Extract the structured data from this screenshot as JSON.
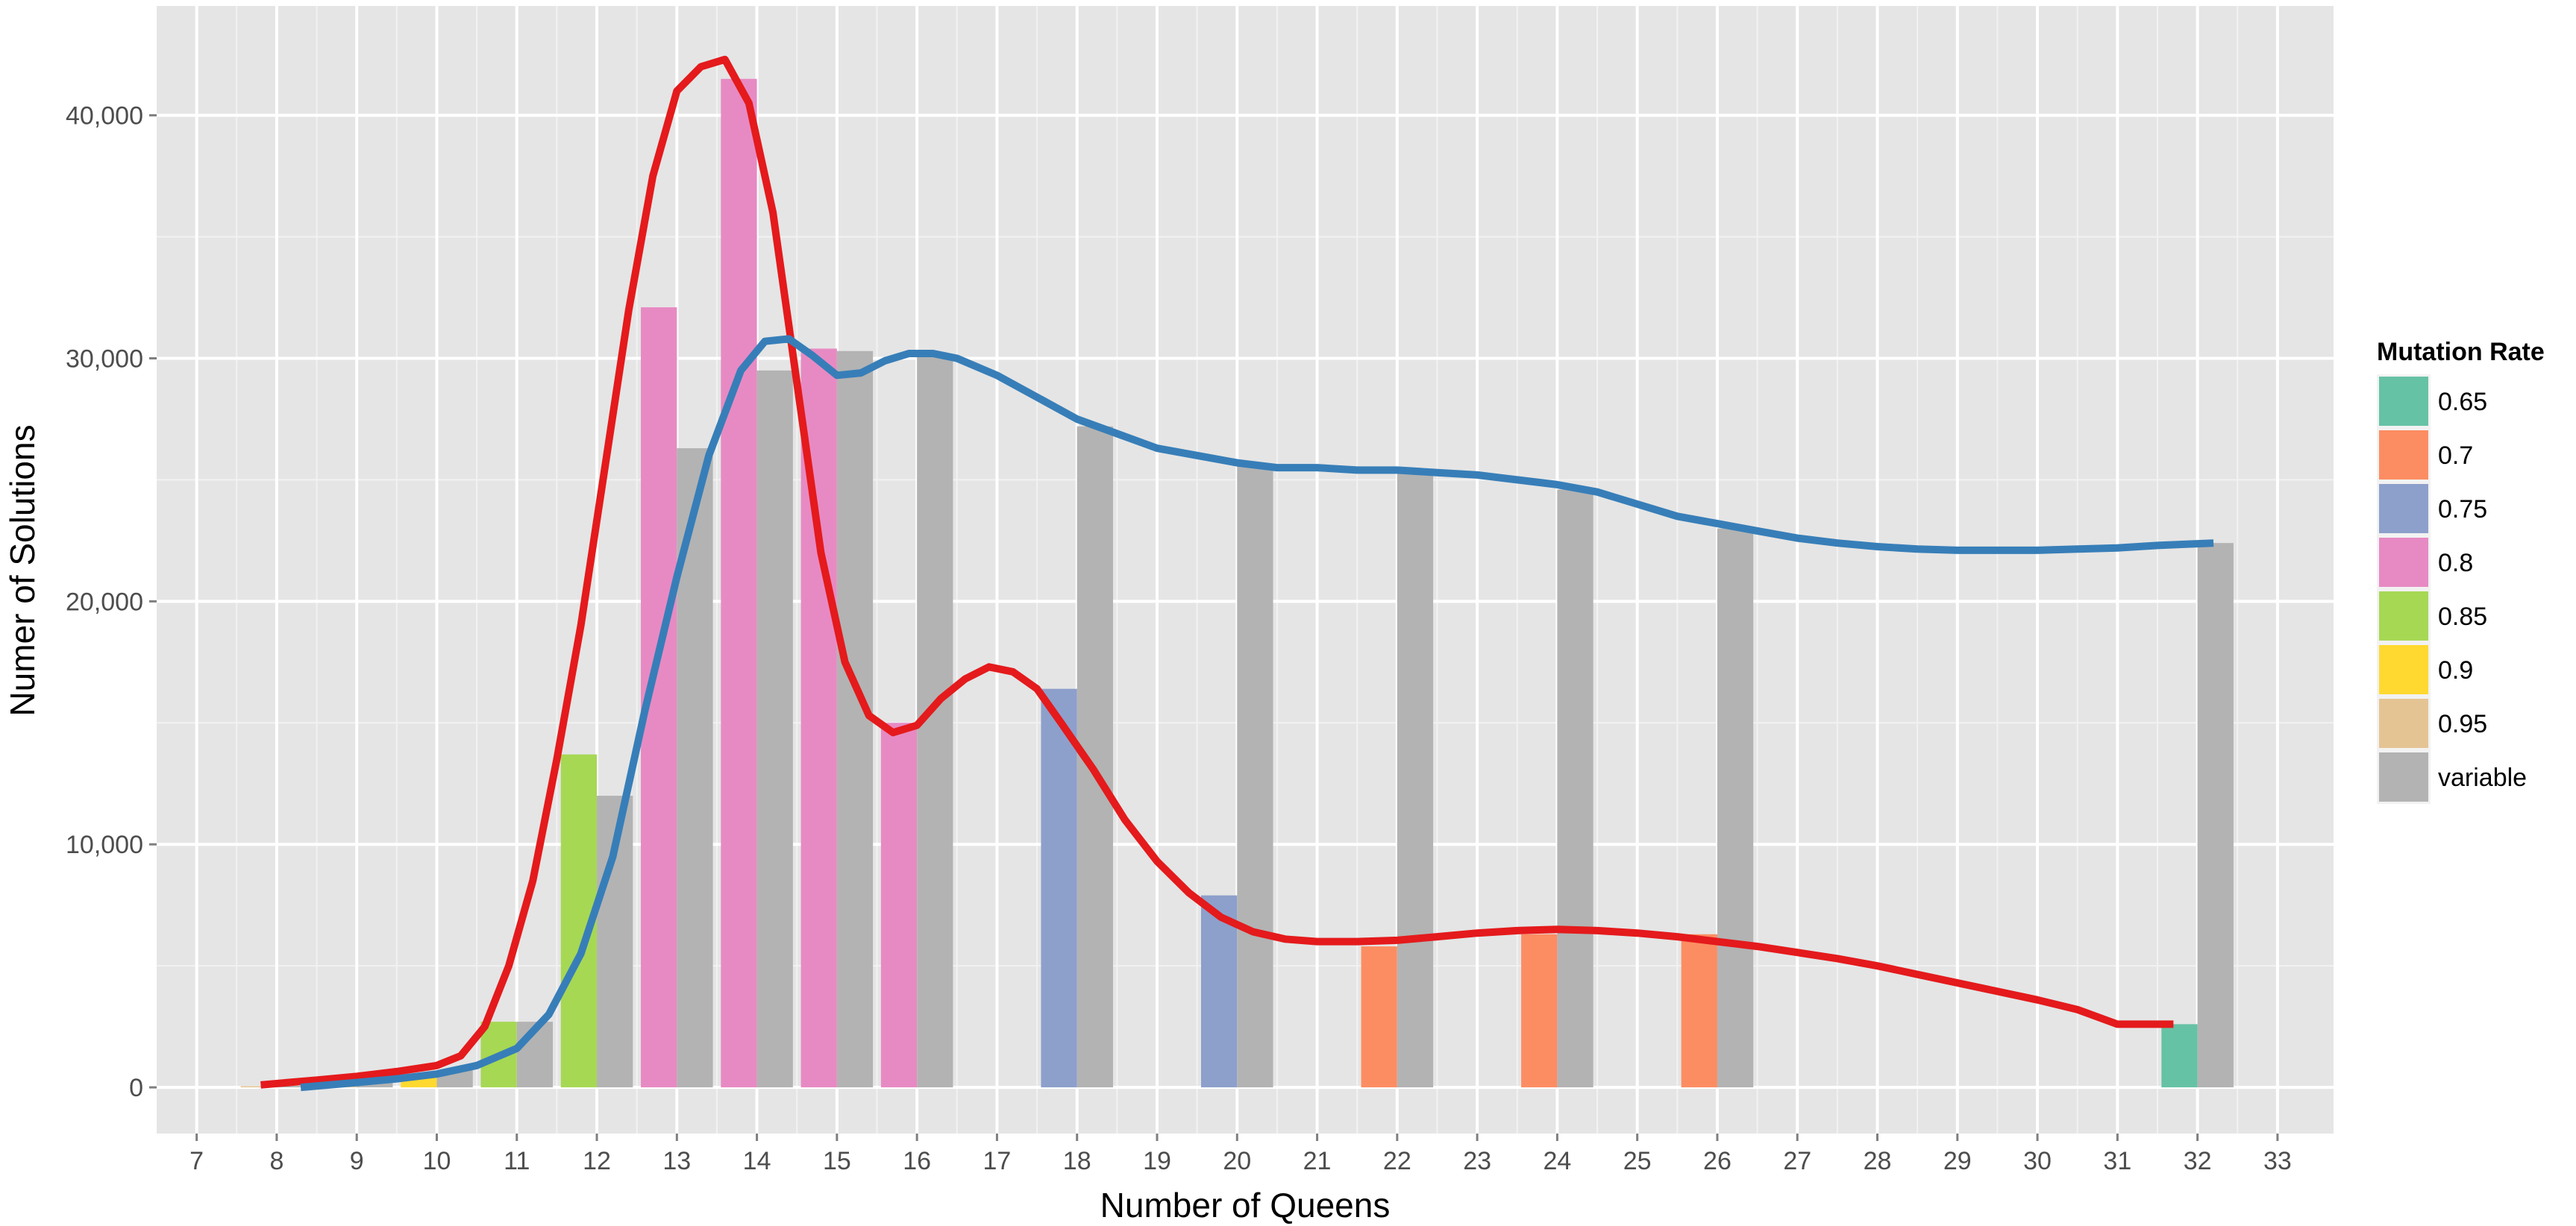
{
  "chart_data": {
    "type": "bar",
    "title": "",
    "xlabel": "Number of Queens",
    "ylabel": "Numer of Solutions",
    "xlim": [
      6.5,
      33.7
    ],
    "ylim": [
      -1900,
      44500
    ],
    "x_ticks": [
      7,
      8,
      9,
      10,
      11,
      12,
      13,
      14,
      15,
      16,
      17,
      18,
      19,
      20,
      21,
      22,
      23,
      24,
      25,
      26,
      27,
      28,
      29,
      30,
      31,
      32,
      33
    ],
    "x_tick_labels": [
      "7",
      "8",
      "9",
      "10",
      "11",
      "12",
      "13",
      "14",
      "15",
      "16",
      "17",
      "18",
      "19",
      "20",
      "21",
      "22",
      "23",
      "24",
      "25",
      "26",
      "27",
      "28",
      "29",
      "30",
      "31",
      "32",
      "33"
    ],
    "y_ticks": [
      0,
      10000,
      20000,
      30000,
      40000
    ],
    "y_tick_labels": [
      "0",
      "10,000",
      "20,000",
      "30,000",
      "40,000"
    ],
    "grid": true,
    "legend": {
      "title": "Mutation Rate",
      "position": "right",
      "entries": [
        {
          "label": "0.65",
          "color": "#66c2a5"
        },
        {
          "label": "0.7",
          "color": "#fc8d62"
        },
        {
          "label": "0.75",
          "color": "#8da0cb"
        },
        {
          "label": "0.8",
          "color": "#e78ac3"
        },
        {
          "label": "0.85",
          "color": "#a6d854"
        },
        {
          "label": "0.9",
          "color": "#ffd92f"
        },
        {
          "label": "0.95",
          "color": "#e5c494"
        },
        {
          "label": "variable",
          "color": "#b3b3b3"
        }
      ]
    },
    "bars": [
      {
        "queens": 8,
        "rate": "0.95",
        "value": 50
      },
      {
        "queens": 8,
        "rate": "variable",
        "value": 60
      },
      {
        "queens": 9,
        "rate": "0.95",
        "value": 200
      },
      {
        "queens": 9,
        "rate": "variable",
        "value": 250
      },
      {
        "queens": 10,
        "rate": "0.9",
        "value": 400
      },
      {
        "queens": 10,
        "rate": "variable",
        "value": 700
      },
      {
        "queens": 11,
        "rate": "0.85",
        "value": 2700
      },
      {
        "queens": 11,
        "rate": "variable",
        "value": 2700
      },
      {
        "queens": 12,
        "rate": "0.85",
        "value": 13700
      },
      {
        "queens": 12,
        "rate": "variable",
        "value": 12000
      },
      {
        "queens": 13,
        "rate": "0.8",
        "value": 32100
      },
      {
        "queens": 13,
        "rate": "variable",
        "value": 26300
      },
      {
        "queens": 14,
        "rate": "0.8",
        "value": 41500
      },
      {
        "queens": 14,
        "rate": "variable",
        "value": 29500
      },
      {
        "queens": 15,
        "rate": "0.8",
        "value": 30400
      },
      {
        "queens": 15,
        "rate": "variable",
        "value": 30300
      },
      {
        "queens": 16,
        "rate": "0.8",
        "value": 15000
      },
      {
        "queens": 16,
        "rate": "variable",
        "value": 30100
      },
      {
        "queens": 18,
        "rate": "0.75",
        "value": 16400
      },
      {
        "queens": 18,
        "rate": "variable",
        "value": 27200
      },
      {
        "queens": 20,
        "rate": "0.75",
        "value": 7900
      },
      {
        "queens": 20,
        "rate": "variable",
        "value": 25600
      },
      {
        "queens": 22,
        "rate": "0.7",
        "value": 5800
      },
      {
        "queens": 22,
        "rate": "variable",
        "value": 25300
      },
      {
        "queens": 24,
        "rate": "0.7",
        "value": 6300
      },
      {
        "queens": 24,
        "rate": "variable",
        "value": 24600
      },
      {
        "queens": 26,
        "rate": "0.7",
        "value": 6300
      },
      {
        "queens": 26,
        "rate": "variable",
        "value": 23000
      },
      {
        "queens": 32,
        "rate": "0.65",
        "value": 2600
      },
      {
        "queens": 32,
        "rate": "variable",
        "value": 22400
      }
    ],
    "series": [
      {
        "color": "#e41a1c",
        "x": [
          7.8,
          8.5,
          9.0,
          9.5,
          10.0,
          10.3,
          10.6,
          10.9,
          11.2,
          11.5,
          11.8,
          12.1,
          12.4,
          12.7,
          13.0,
          13.3,
          13.6,
          13.9,
          14.2,
          14.5,
          14.8,
          15.1,
          15.4,
          15.7,
          16.0,
          16.3,
          16.6,
          16.9,
          17.2,
          17.5,
          17.8,
          18.2,
          18.6,
          19.0,
          19.4,
          19.8,
          20.2,
          20.6,
          21.0,
          21.5,
          22.0,
          22.5,
          23.0,
          23.5,
          24.0,
          24.5,
          25.0,
          25.5,
          26.0,
          26.5,
          27.0,
          27.5,
          28.0,
          28.5,
          29.0,
          29.5,
          30.0,
          30.5,
          31.0,
          31.7
        ],
        "y": [
          100,
          300,
          450,
          650,
          900,
          1300,
          2500,
          5000,
          8500,
          13500,
          19000,
          25500,
          32000,
          37500,
          41000,
          42000,
          42300,
          40500,
          36000,
          29000,
          22000,
          17500,
          15300,
          14600,
          14900,
          16000,
          16800,
          17300,
          17100,
          16400,
          15000,
          13100,
          11000,
          9300,
          8000,
          7000,
          6400,
          6100,
          6000,
          6000,
          6050,
          6200,
          6350,
          6450,
          6500,
          6450,
          6350,
          6200,
          6000,
          5800,
          5550,
          5300,
          5000,
          4650,
          4300,
          3950,
          3600,
          3200,
          2600,
          2600
        ]
      },
      {
        "color": "#377eb8",
        "x": [
          8.3,
          9.0,
          9.5,
          10.0,
          10.5,
          11.0,
          11.4,
          11.8,
          12.2,
          12.6,
          13.0,
          13.4,
          13.8,
          14.1,
          14.4,
          14.7,
          15.0,
          15.3,
          15.6,
          15.9,
          16.2,
          16.5,
          17.0,
          17.5,
          18.0,
          18.5,
          19.0,
          19.5,
          20.0,
          20.5,
          21.0,
          21.5,
          22.0,
          22.5,
          23.0,
          23.5,
          24.0,
          24.5,
          25.0,
          25.5,
          26.0,
          26.5,
          27.0,
          27.5,
          28.0,
          28.5,
          29.0,
          29.5,
          30.0,
          30.5,
          31.0,
          31.5,
          32.2
        ],
        "y": [
          0,
          200,
          350,
          550,
          900,
          1600,
          3000,
          5500,
          9500,
          15500,
          21000,
          26000,
          29500,
          30700,
          30800,
          30100,
          29300,
          29400,
          29900,
          30200,
          30200,
          30000,
          29300,
          28400,
          27500,
          26900,
          26300,
          26000,
          25700,
          25500,
          25500,
          25400,
          25400,
          25300,
          25200,
          25000,
          24800,
          24500,
          24000,
          23500,
          23200,
          22900,
          22600,
          22400,
          22250,
          22150,
          22100,
          22100,
          22100,
          22150,
          22200,
          22300,
          22400
        ]
      }
    ]
  }
}
